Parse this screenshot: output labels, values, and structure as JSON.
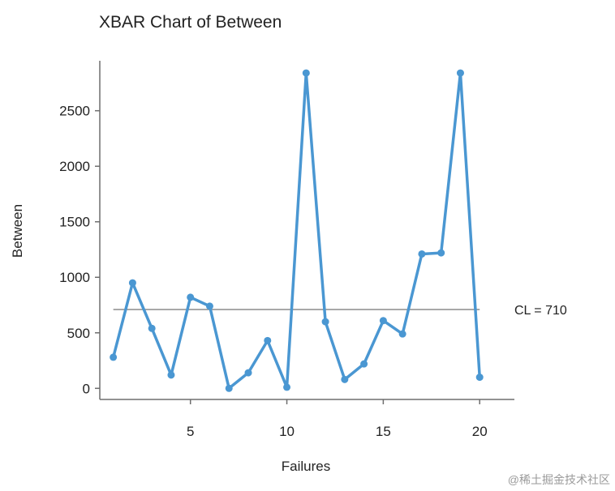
{
  "chart_data": {
    "type": "line",
    "title": "XBAR Chart of Between",
    "xlabel": "Failures",
    "ylabel": "Between",
    "xlim": [
      0.3,
      21.8
    ],
    "ylim": [
      -100,
      2950
    ],
    "xticks": [
      5,
      10,
      15,
      20
    ],
    "yticks": [
      0,
      500,
      1000,
      1500,
      2000,
      2500
    ],
    "center_line": {
      "value": 710,
      "label": "CL = 710"
    },
    "grid": false,
    "series": [
      {
        "x": [
          1,
          2,
          3,
          4,
          5,
          6,
          7,
          8,
          9,
          10,
          11,
          12,
          13,
          14,
          15,
          16,
          17,
          18,
          19,
          20
        ],
        "values": [
          280,
          950,
          540,
          120,
          820,
          740,
          0,
          140,
          430,
          10,
          2840,
          600,
          80,
          220,
          610,
          490,
          1210,
          1220,
          2840,
          100
        ]
      }
    ],
    "colors": {
      "line": "#4a97d2",
      "center_line": "#8c8c8c",
      "axis": "#6e6e6e"
    }
  },
  "watermark": "@稀土掘金技术社区"
}
